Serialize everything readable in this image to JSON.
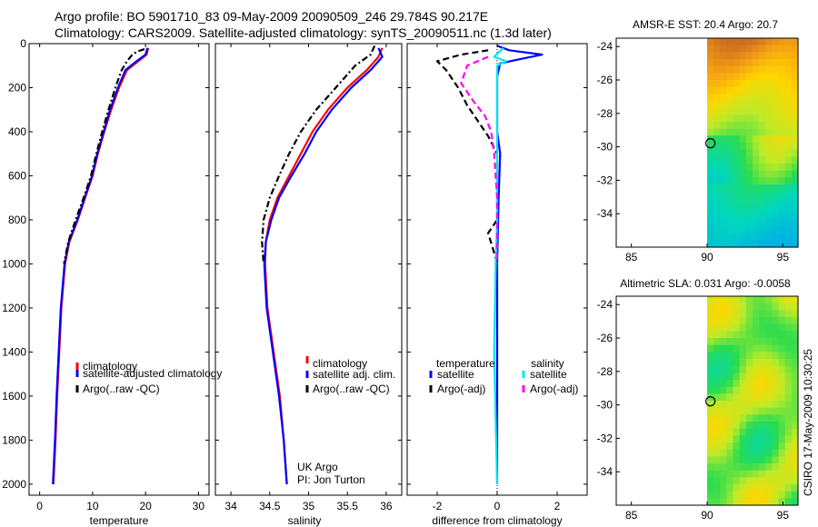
{
  "header": {
    "line1": "Argo profile: BO 5901710_83 09-May-2009 20090509_246 29.784S 90.217E",
    "line2": "Climatology: CARS2009. Satellite-adjusted climatology: synTS_20090511.nc (1.3d later)"
  },
  "side_label": "CSIRO 17-May-2009 10:30:25",
  "chart_data": [
    {
      "id": "temperature",
      "type": "line",
      "xlabel": "temperature",
      "ylabel": "",
      "xlim": [
        -2,
        32
      ],
      "ylim": [
        2050,
        0
      ],
      "xticks": [
        0,
        10,
        20,
        30
      ],
      "yticks": [
        0,
        200,
        400,
        600,
        800,
        1000,
        1200,
        1400,
        1600,
        1800,
        2000
      ],
      "legend": [
        "climatology",
        "satellite-adjusted climatology",
        "Argo(..raw -QC)"
      ],
      "series": [
        {
          "name": "climatology",
          "color": "#ff0000",
          "dash": "",
          "points": [
            [
              20.5,
              20
            ],
            [
              20.2,
              50
            ],
            [
              18.6,
              80
            ],
            [
              16.5,
              120
            ],
            [
              15.0,
              200
            ],
            [
              13.5,
              300
            ],
            [
              12.2,
              400
            ],
            [
              11.0,
              500
            ],
            [
              10.0,
              600
            ],
            [
              8.6,
              700
            ],
            [
              7.2,
              800
            ],
            [
              5.6,
              900
            ],
            [
              4.8,
              1000
            ],
            [
              4.1,
              1200
            ],
            [
              3.7,
              1400
            ],
            [
              3.3,
              1600
            ],
            [
              3.0,
              1800
            ],
            [
              2.6,
              2000
            ]
          ]
        },
        {
          "name": "satellite-adjusted climatology",
          "color": "#0000ff",
          "dash": "",
          "points": [
            [
              20.4,
              20
            ],
            [
              20.0,
              50
            ],
            [
              18.3,
              80
            ],
            [
              16.2,
              120
            ],
            [
              14.8,
              200
            ],
            [
              13.3,
              300
            ],
            [
              12.1,
              400
            ],
            [
              10.9,
              500
            ],
            [
              9.9,
              600
            ],
            [
              8.5,
              700
            ],
            [
              7.1,
              800
            ],
            [
              5.5,
              900
            ],
            [
              4.7,
              1000
            ],
            [
              4.0,
              1200
            ],
            [
              3.6,
              1400
            ],
            [
              3.2,
              1600
            ],
            [
              2.9,
              1800
            ],
            [
              2.5,
              2000
            ]
          ]
        },
        {
          "name": "Argo(..raw -QC)",
          "color": "#000000",
          "dash": "7,3,2,3",
          "points": [
            [
              19.8,
              25
            ],
            [
              18.5,
              35
            ],
            [
              17.5,
              50
            ],
            [
              16.5,
              80
            ],
            [
              15.5,
              120
            ],
            [
              14.3,
              200
            ],
            [
              13.0,
              300
            ],
            [
              11.8,
              400
            ],
            [
              10.7,
              500
            ],
            [
              9.7,
              600
            ],
            [
              8.3,
              700
            ],
            [
              6.8,
              800
            ],
            [
              5.4,
              900
            ],
            [
              4.6,
              1000
            ]
          ]
        }
      ]
    },
    {
      "id": "salinity",
      "type": "line",
      "xlabel": "salinity",
      "ylabel": "",
      "xlim": [
        33.8,
        36.2
      ],
      "ylim": [
        2050,
        0
      ],
      "xticks": [
        34,
        34.5,
        35,
        35.5,
        36
      ],
      "xtick_labels": [
        "34",
        "34.5",
        "35",
        "35.5",
        "36"
      ],
      "yticks": [
        0,
        200,
        400,
        600,
        800,
        1000,
        1200,
        1400,
        1600,
        1800,
        2000
      ],
      "legend": [
        "climatology",
        "satellite adj. clim.",
        "Argo(..raw -QC)"
      ],
      "annotation": [
        "UK Argo",
        "PI: Jon Turton"
      ],
      "series": [
        {
          "name": "climatology",
          "color": "#ff0000",
          "dash": "",
          "points": [
            [
              35.95,
              20
            ],
            [
              35.9,
              60
            ],
            [
              35.75,
              120
            ],
            [
              35.5,
              200
            ],
            [
              35.25,
              300
            ],
            [
              35.05,
              400
            ],
            [
              34.9,
              500
            ],
            [
              34.75,
              600
            ],
            [
              34.6,
              700
            ],
            [
              34.5,
              800
            ],
            [
              34.45,
              900
            ],
            [
              34.44,
              1000
            ],
            [
              34.47,
              1200
            ],
            [
              34.55,
              1400
            ],
            [
              34.63,
              1600
            ],
            [
              34.68,
              1800
            ],
            [
              34.72,
              2000
            ]
          ]
        },
        {
          "name": "satellite adj. clim.",
          "color": "#0000ff",
          "dash": "",
          "points": [
            [
              35.9,
              20
            ],
            [
              35.95,
              60
            ],
            [
              35.8,
              120
            ],
            [
              35.55,
              200
            ],
            [
              35.3,
              300
            ],
            [
              35.1,
              400
            ],
            [
              34.95,
              500
            ],
            [
              34.78,
              600
            ],
            [
              34.62,
              700
            ],
            [
              34.52,
              800
            ],
            [
              34.45,
              900
            ],
            [
              34.43,
              1000
            ],
            [
              34.46,
              1200
            ],
            [
              34.54,
              1400
            ],
            [
              34.62,
              1600
            ],
            [
              34.68,
              1800
            ],
            [
              34.72,
              2000
            ]
          ]
        },
        {
          "name": "Argo(..raw -QC)",
          "color": "#000000",
          "dash": "7,3,2,3",
          "points": [
            [
              35.85,
              10
            ],
            [
              35.8,
              50
            ],
            [
              35.6,
              100
            ],
            [
              35.35,
              200
            ],
            [
              35.1,
              300
            ],
            [
              34.9,
              400
            ],
            [
              34.75,
              500
            ],
            [
              34.62,
              600
            ],
            [
              34.5,
              700
            ],
            [
              34.42,
              800
            ],
            [
              34.4,
              900
            ],
            [
              34.42,
              1000
            ]
          ]
        }
      ]
    },
    {
      "id": "difference",
      "type": "line",
      "xlabel": "difference from climatology",
      "ylabel": "",
      "xlim": [
        -3,
        3
      ],
      "ylim": [
        2050,
        0
      ],
      "xticks": [
        -2,
        0,
        2
      ],
      "yticks": [
        0,
        200,
        400,
        600,
        800,
        1000,
        1200,
        1400,
        1600,
        1800,
        2000
      ],
      "legend_groups": [
        {
          "title": "temperature",
          "items": [
            "satellite",
            "Argo(-adj)"
          ]
        },
        {
          "title": "salinity",
          "items": [
            "satellite",
            "Argo(-adj)"
          ]
        }
      ],
      "series": [
        {
          "name": "temperature satellite",
          "color": "#0000ff",
          "dash": "",
          "points": [
            [
              0.0,
              10
            ],
            [
              0.4,
              30
            ],
            [
              1.5,
              50
            ],
            [
              0.6,
              75
            ],
            [
              0.1,
              90
            ],
            [
              0.0,
              150
            ],
            [
              0.0,
              300
            ],
            [
              0.0,
              400
            ],
            [
              0.1,
              500
            ],
            [
              0.05,
              700
            ],
            [
              0.0,
              1000
            ],
            [
              0.0,
              1500
            ],
            [
              0.0,
              2000
            ]
          ]
        },
        {
          "name": "temperature Argo(-adj)",
          "color": "#000000",
          "dash": "7,4",
          "points": [
            [
              -0.3,
              30
            ],
            [
              -1.2,
              50
            ],
            [
              -2.0,
              80
            ],
            [
              -1.7,
              120
            ],
            [
              -1.3,
              200
            ],
            [
              -1.0,
              280
            ],
            [
              -0.7,
              340
            ],
            [
              -0.3,
              420
            ],
            [
              0.0,
              500
            ],
            [
              0.0,
              800
            ],
            [
              -0.3,
              860
            ],
            [
              -0.1,
              950
            ],
            [
              0.0,
              1000
            ]
          ]
        },
        {
          "name": "salinity satellite",
          "color": "#00e5ee",
          "dash": "",
          "points": [
            [
              0.2,
              20
            ],
            [
              -0.1,
              60
            ],
            [
              0.3,
              80
            ],
            [
              0.0,
              100
            ],
            [
              0.0,
              400
            ],
            [
              0.0,
              800
            ],
            [
              -0.05,
              1000
            ],
            [
              -0.1,
              1400
            ],
            [
              0.0,
              2000
            ]
          ]
        },
        {
          "name": "salinity Argo(-adj)",
          "color": "#ff00ff",
          "dash": "7,4",
          "points": [
            [
              -0.3,
              60
            ],
            [
              -1.0,
              100
            ],
            [
              -1.2,
              180
            ],
            [
              -0.8,
              260
            ],
            [
              -0.4,
              330
            ],
            [
              -0.2,
              400
            ],
            [
              -0.1,
              500
            ],
            [
              0.0,
              700
            ],
            [
              0.0,
              900
            ],
            [
              0.0,
              1000
            ]
          ]
        }
      ]
    },
    {
      "id": "sst_map",
      "type": "heatmap",
      "title": "AMSR-E SST: 20.4 Argo: 20.7",
      "xlim": [
        84,
        96
      ],
      "ylim": [
        -36,
        -23.5
      ],
      "xticks": [
        85,
        90,
        95
      ],
      "yticks": [
        -24,
        -26,
        -28,
        -30,
        -32,
        -34
      ],
      "data_xmin": 90,
      "float_position": [
        90.217,
        -29.784
      ]
    },
    {
      "id": "sla_map",
      "type": "heatmap",
      "title": "Altimetric SLA: 0.031 Argo: -0.0058",
      "xlim": [
        84,
        96
      ],
      "ylim": [
        -36,
        -23.5
      ],
      "xticks": [
        85,
        90,
        95
      ],
      "yticks": [
        -24,
        -26,
        -28,
        -30,
        -32,
        -34
      ],
      "data_xmin": 90,
      "float_position": [
        90.217,
        -29.784
      ]
    }
  ]
}
